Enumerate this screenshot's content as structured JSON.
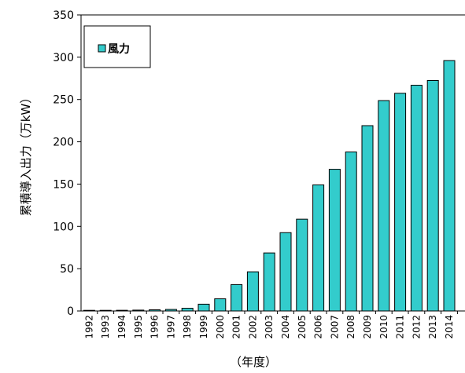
{
  "chart_data": {
    "type": "bar",
    "title": "",
    "xlabel": "（年度）",
    "ylabel": "累積導入出力（万kW）",
    "ylim": [
      0,
      350
    ],
    "yticks": [
      0,
      50,
      100,
      150,
      200,
      250,
      300,
      350
    ],
    "grid": false,
    "legend_position": "top-left",
    "categories": [
      "1992",
      "1993",
      "1994",
      "1995",
      "1996",
      "1997",
      "1998",
      "1999",
      "2000",
      "2001",
      "2002",
      "2003",
      "2004",
      "2005",
      "2006",
      "2007",
      "2008",
      "2009",
      "2010",
      "2011",
      "2012",
      "2013",
      "2014"
    ],
    "series": [
      {
        "name": "風力",
        "color": "#33CCCC",
        "values": [
          0.3,
          0.5,
          0.8,
          1,
          1.4,
          1.8,
          3.2,
          8,
          14.4,
          31.2,
          46.3,
          68.6,
          92.6,
          108.5,
          149.1,
          167.5,
          188.0,
          219.1,
          248.7,
          257.4,
          266.9,
          272.5,
          296.0
        ]
      }
    ]
  }
}
